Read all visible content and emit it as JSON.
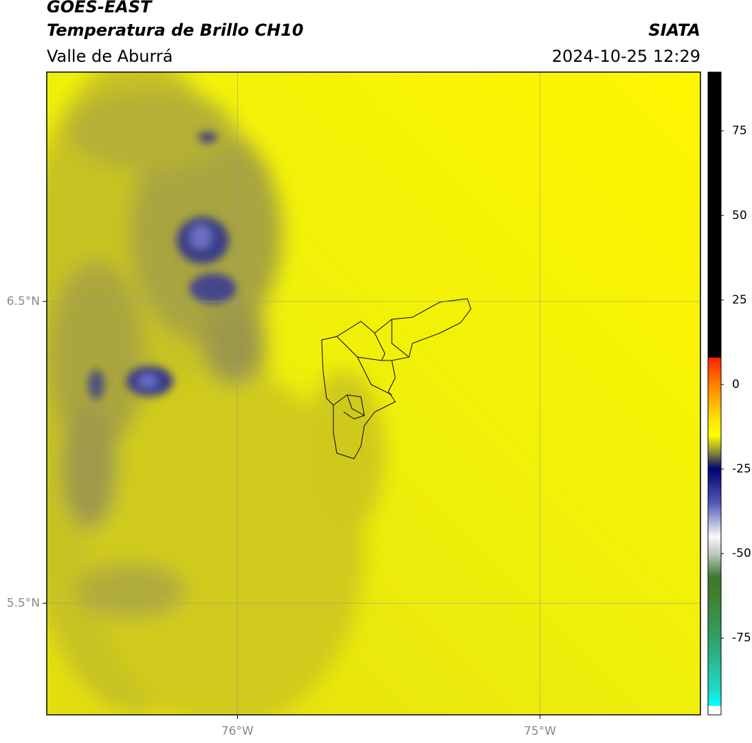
{
  "header": {
    "satellite": "GOES-EAST",
    "product": "Temperatura de Brillo CH10",
    "region": "Valle de Aburrá",
    "source": "SIATA",
    "datetime": "2024-10-25 12:29"
  },
  "map": {
    "xlim": [
      -76.63,
      -74.47
    ],
    "ylim": [
      5.13,
      7.26
    ],
    "xticks": [
      {
        "value": -76,
        "label": "76°W"
      },
      {
        "value": -75,
        "label": "75°W"
      }
    ],
    "yticks": [
      {
        "value": 6.5,
        "label": "6.5°N"
      },
      {
        "value": 5.5,
        "label": "5.5°N"
      }
    ],
    "grid": true
  },
  "colorbar": {
    "lim": [
      -97.7,
      92.4
    ],
    "ticks": [
      75,
      50,
      25,
      0,
      -25,
      -50,
      -75
    ],
    "stops": [
      [
        92.4,
        "#000000"
      ],
      [
        8,
        "#000000"
      ],
      [
        7.9,
        "#ff2000"
      ],
      [
        0,
        "#ff8000"
      ],
      [
        -10,
        "#ffe000"
      ],
      [
        -15,
        "#ffff00"
      ],
      [
        -20,
        "#8c8c38"
      ],
      [
        -25,
        "#000070"
      ],
      [
        -35,
        "#5058b8"
      ],
      [
        -45,
        "#f8f8f8"
      ],
      [
        -50,
        "#c0c8c0"
      ],
      [
        -57,
        "#3c7830"
      ],
      [
        -62,
        "#40802a"
      ],
      [
        -75,
        "#30a068"
      ],
      [
        -90,
        "#20d8c8"
      ],
      [
        -95,
        "#00ffff"
      ],
      [
        -95.1,
        "#ffffff"
      ],
      [
        -97.7,
        "#ffffff"
      ]
    ]
  }
}
